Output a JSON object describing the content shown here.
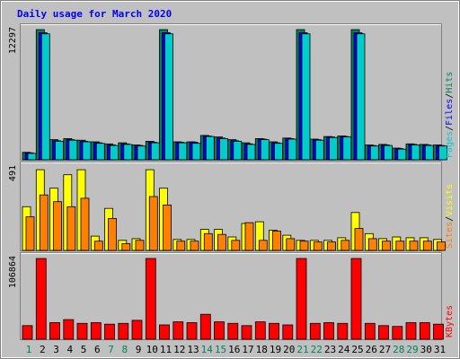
{
  "chart_data": {
    "type": "bar",
    "title": "Daily usage for March 2020",
    "categories": [
      "1",
      "2",
      "3",
      "4",
      "5",
      "6",
      "7",
      "8",
      "9",
      "10",
      "11",
      "12",
      "13",
      "14",
      "15",
      "16",
      "17",
      "18",
      "19",
      "20",
      "21",
      "22",
      "23",
      "24",
      "25",
      "26",
      "27",
      "28",
      "29",
      "30",
      "31"
    ],
    "weekend_days": [
      "1",
      "7",
      "8",
      "14",
      "15",
      "21",
      "22",
      "28",
      "29"
    ],
    "colors": {
      "background": "#c0c0c0",
      "plot": "#c0c0c0",
      "title": "#0000ff",
      "day_label": "#000000",
      "weekend_label": "#00805c",
      "hits": "#00805c",
      "files": "#0000ff",
      "pages": "#00cccc",
      "visits": "#ffff00",
      "sites": "#ff8000",
      "kbytes": "#ff0000",
      "separator": "#000000"
    },
    "panels": [
      {
        "axis_max_label": "12297",
        "ylim": [
          0,
          12297
        ],
        "legend": [
          "Pages",
          "Files",
          "Hits"
        ],
        "series": [
          {
            "name": "Hits",
            "values": [
              700,
              12297,
              1900,
              2000,
              1850,
              1700,
              1500,
              1600,
              1400,
              1750,
              12297,
              1700,
              1700,
              2300,
              2150,
              1900,
              1600,
              2000,
              1700,
              2050,
              12297,
              1950,
              2200,
              2250,
              12297,
              1400,
              1450,
              1100,
              1500,
              1450,
              1400
            ]
          },
          {
            "name": "Files",
            "values": [
              650,
              12000,
              1800,
              1900,
              1750,
              1600,
              1400,
              1500,
              1350,
              1650,
              12000,
              1650,
              1650,
              2250,
              2050,
              1800,
              1500,
              1950,
              1600,
              2000,
              12000,
              1900,
              2150,
              2200,
              12000,
              1350,
              1400,
              1050,
              1450,
              1400,
              1350
            ]
          },
          {
            "name": "Pages",
            "values": [
              600,
              11900,
              1750,
              1850,
              1700,
              1550,
              1350,
              1450,
              1300,
              1600,
              11900,
              1600,
              1550,
              2200,
              2000,
              1750,
              1450,
              1900,
              1550,
              1950,
              11900,
              1850,
              2100,
              2150,
              11900,
              1300,
              1350,
              1000,
              1400,
              1350,
              1300
            ]
          }
        ]
      },
      {
        "axis_max_label": "491",
        "ylim": [
          0,
          491
        ],
        "legend": [
          "Sites",
          "Visits"
        ],
        "series": [
          {
            "name": "Visits",
            "values": [
              260,
              480,
              370,
              450,
              480,
              85,
              250,
              60,
              70,
              480,
              370,
              65,
              65,
              125,
              125,
              80,
              160,
              170,
              120,
              90,
              60,
              60,
              60,
              75,
              225,
              100,
              70,
              80,
              75,
              75,
              65
            ]
          },
          {
            "name": "Sites",
            "values": [
              200,
              330,
              290,
              260,
              310,
              55,
              190,
              40,
              60,
              320,
              270,
              55,
              55,
              100,
              95,
              60,
              165,
              60,
              115,
              70,
              55,
              50,
              50,
              60,
              130,
              70,
              55,
              55,
              55,
              55,
              50
            ]
          }
        ]
      },
      {
        "axis_max_label": "106864",
        "ylim": [
          0,
          106864
        ],
        "legend": [
          "KBytes"
        ],
        "series": [
          {
            "name": "KBytes",
            "values": [
              18000,
              106864,
              22000,
              26000,
              21000,
              22000,
              20000,
              21000,
              25000,
              106864,
              19000,
              23000,
              22000,
              33000,
              23000,
              21000,
              18000,
              23000,
              21000,
              19000,
              106864,
              21000,
              22000,
              21000,
              106864,
              21000,
              18000,
              17000,
              22000,
              22000,
              20000
            ]
          }
        ]
      }
    ]
  }
}
